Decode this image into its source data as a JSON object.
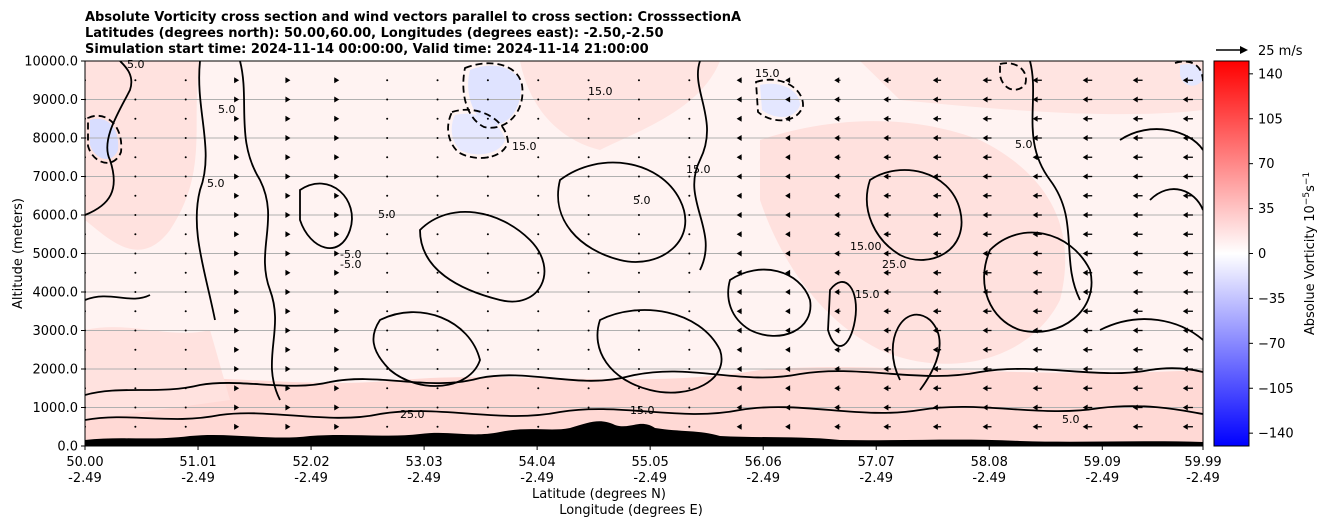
{
  "chart_data": {
    "type": "heatmap",
    "title_lines": [
      "Absolute Vorticity cross section and wind vectors parallel to cross section: CrosssectionA",
      "Latitudes (degrees north): 50.00,60.00, Longitudes (degrees east): -2.50,-2.50",
      "Simulation start time: 2024-11-14 00:00:00, Valid time: 2024-11-14 21:00:00"
    ],
    "xlabel_lat": "Latitude (degrees N)",
    "xlabel_lon": "Longitude (degrees E)",
    "ylabel": "Altitude (meters)",
    "ylim": [
      0,
      10000
    ],
    "y_ticks": [
      0,
      1000,
      2000,
      3000,
      4000,
      5000,
      6000,
      7000,
      8000,
      9000,
      10000
    ],
    "y_tick_labels": [
      "0.0",
      "1000.0",
      "2000.0",
      "3000.0",
      "4000.0",
      "5000.0",
      "6000.0",
      "7000.0",
      "8000.0",
      "9000.0",
      "10000.0"
    ],
    "xlim": [
      50.0,
      59.99
    ],
    "x_ticks": [
      50.0,
      51.01,
      52.02,
      53.03,
      54.04,
      55.05,
      56.06,
      57.07,
      58.08,
      59.09,
      59.99
    ],
    "x_tick_labels_lat": [
      "50.00",
      "51.01",
      "52.02",
      "53.03",
      "54.04",
      "55.05",
      "56.06",
      "57.07",
      "58.08",
      "59.09",
      "59.99"
    ],
    "x_tick_labels_lon": [
      "-2.49",
      "-2.49",
      "-2.49",
      "-2.49",
      "-2.49",
      "-2.49",
      "-2.49",
      "-2.49",
      "-2.49",
      "-2.49",
      "-2.49"
    ],
    "grid": "horizontal",
    "colorbar": {
      "label": "Absolue Vorticity 10",
      "label_exponent": "−5",
      "label_unit": "s",
      "label_unit_exponent": "−1",
      "colormap": "bwr",
      "range": [
        -150,
        150
      ],
      "ticks": [
        140,
        105,
        70,
        35,
        0,
        -35,
        -70,
        -105,
        -140
      ],
      "tick_labels": [
        "140",
        "105",
        "70",
        "35",
        "0",
        "−35",
        "−70",
        "−105",
        "−140"
      ]
    },
    "quiver_key": {
      "label": "25 m/s",
      "speed": 25
    },
    "contour_labels": [
      "5.0",
      "-5.0",
      "15.0",
      "25.0",
      "15.00"
    ],
    "wind_columns_x": [
      50.0,
      50.45,
      50.9,
      51.35,
      51.8,
      52.25,
      52.7,
      53.15,
      53.6,
      54.05,
      54.5,
      54.95,
      55.4,
      55.85,
      56.3,
      56.75,
      57.2,
      57.65,
      58.1,
      58.55,
      59.0,
      59.45,
      59.9
    ],
    "wind_levels_y": [
      500,
      1000,
      1500,
      2000,
      2500,
      3000,
      3500,
      4000,
      4500,
      5000,
      5500,
      6000,
      6500,
      7000,
      7500,
      8000,
      8500,
      9000,
      9500
    ],
    "wind_u_by_column_ms": [
      0.3,
      0.3,
      0.6,
      1.0,
      1.3,
      0.8,
      0.5,
      0.2,
      0.1,
      0.1,
      -0.1,
      -0.2,
      -0.3,
      -1.0,
      -1.6,
      -2.0,
      -2.4,
      -2.7,
      -2.9,
      -3.0,
      -3.1,
      -3.2,
      -3.3
    ]
  }
}
